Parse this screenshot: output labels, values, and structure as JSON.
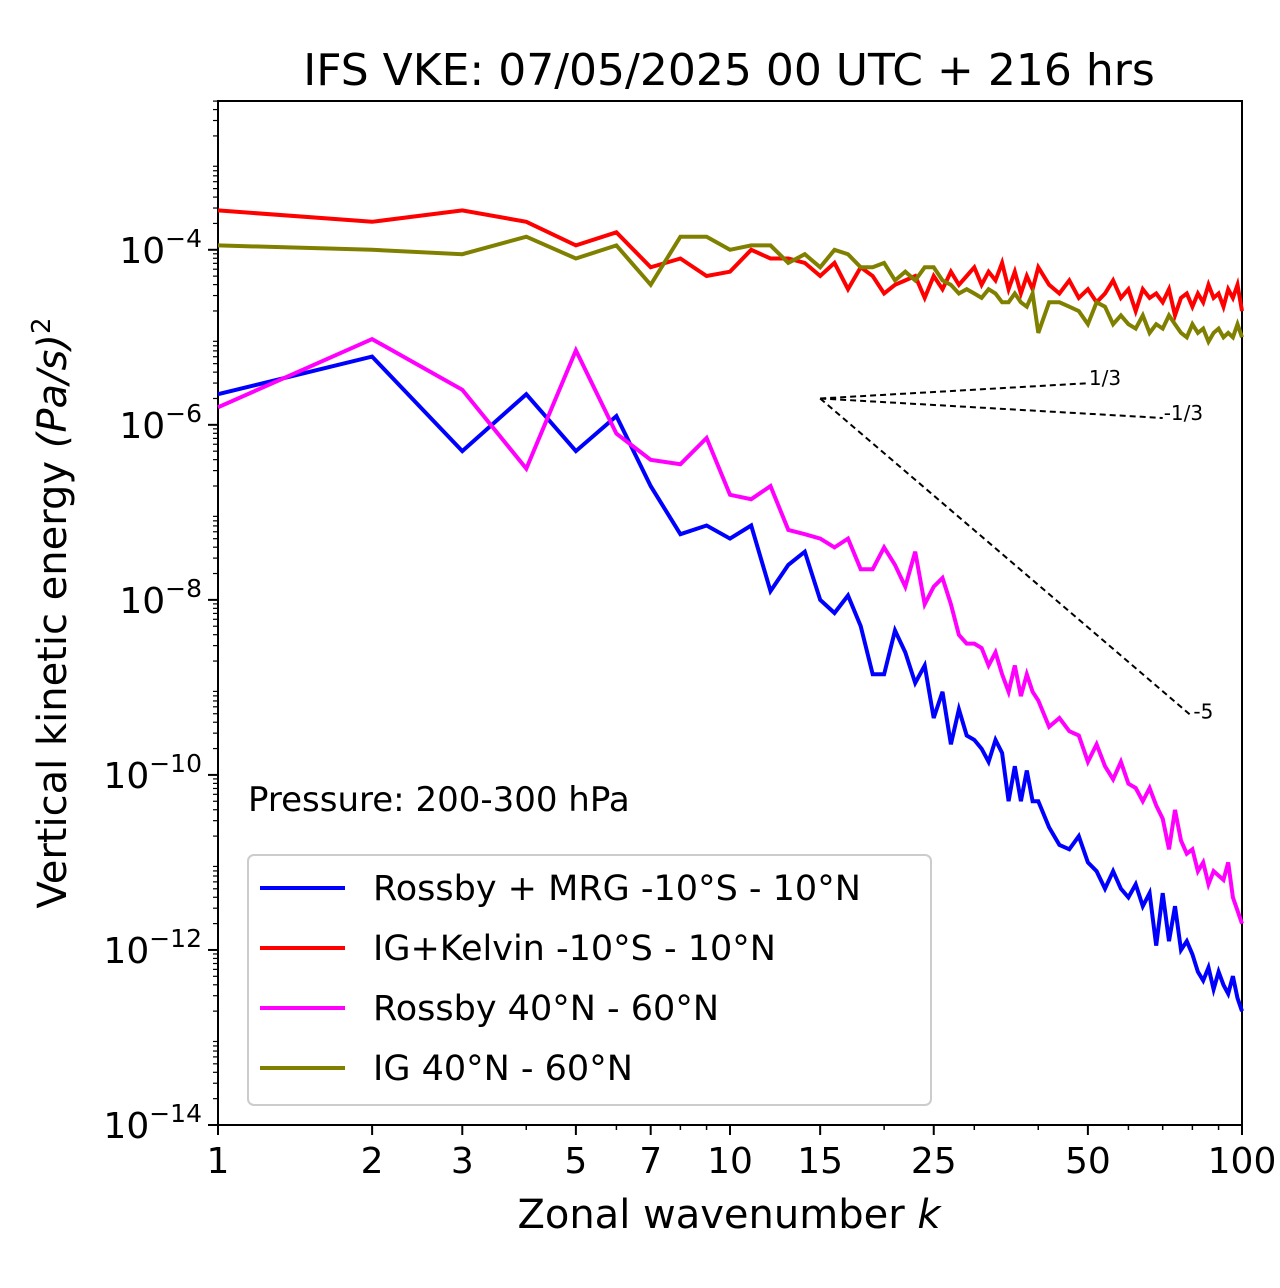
{
  "chart_data": {
    "type": "line",
    "title": "IFS VKE: 07/05/2025 00 UTC + 216 hrs",
    "xlabel": "Zonal wavenumber",
    "xlabel_italic": "k",
    "ylabel": "Vertical kinetic energy",
    "ylabel_unit": "(Pa/s)",
    "ylabel_exp": "2",
    "x_scale": "log",
    "y_scale": "log",
    "xlim": [
      1,
      100
    ],
    "ylim_exp": [
      -14,
      -2.3
    ],
    "x_ticks": [
      1,
      2,
      3,
      5,
      7,
      10,
      15,
      25,
      50,
      100
    ],
    "y_tick_exps": [
      -14,
      -12,
      -10,
      -8,
      -6,
      -4
    ],
    "y_tick_base": "10",
    "annotation": "Pressure: 200-300 hPa",
    "legend_position": "lower-left",
    "reference_lines": [
      {
        "label": "1/3",
        "slope": 0.3333
      },
      {
        "label": "-1/3",
        "slope": -0.3333
      },
      {
        "label": "-5",
        "slope": -5
      }
    ],
    "reference_origin": {
      "x": 15,
      "y": 2e-06
    },
    "reference_end_x": [
      50,
      70,
      80
    ],
    "series": [
      {
        "name": "Rossby + MRG -10°S - 10°N",
        "color": "#0000ff",
        "x": [
          1,
          2,
          3,
          4,
          5,
          6,
          7,
          8,
          9,
          10,
          11,
          12,
          13,
          14,
          15,
          16,
          17,
          18,
          19,
          20,
          21,
          22,
          23,
          24,
          25,
          26,
          27,
          28,
          29,
          30,
          31,
          32,
          33,
          34,
          35,
          36,
          37,
          38,
          39,
          40,
          42,
          44,
          46,
          48,
          50,
          52,
          54,
          56,
          58,
          60,
          62,
          64,
          66,
          68,
          70,
          72,
          74,
          76,
          78,
          80,
          82,
          84,
          86,
          88,
          90,
          92,
          94,
          96,
          98,
          100
        ],
        "y_exp": [
          -5.65,
          -5.22,
          -6.3,
          -5.65,
          -6.3,
          -5.9,
          -6.7,
          -7.25,
          -7.15,
          -7.3,
          -7.15,
          -7.9,
          -7.6,
          -7.45,
          -8.0,
          -8.15,
          -7.95,
          -8.3,
          -8.85,
          -8.85,
          -8.35,
          -8.6,
          -8.95,
          -8.75,
          -9.35,
          -9.05,
          -9.65,
          -9.25,
          -9.55,
          -9.6,
          -9.7,
          -9.85,
          -9.6,
          -9.75,
          -10.3,
          -9.9,
          -10.3,
          -9.95,
          -10.3,
          -10.3,
          -10.6,
          -10.8,
          -10.85,
          -10.7,
          -11.0,
          -11.1,
          -11.3,
          -11.1,
          -11.3,
          -11.4,
          -11.25,
          -11.5,
          -11.35,
          -11.95,
          -11.35,
          -11.9,
          -11.5,
          -12.0,
          -11.9,
          -12.05,
          -12.25,
          -12.35,
          -12.2,
          -12.45,
          -12.25,
          -12.4,
          -12.5,
          -12.3,
          -12.55,
          -12.7
        ]
      },
      {
        "name": "IG+Kelvin -10°S - 10°N",
        "color": "#ff0000",
        "x": [
          1,
          2,
          3,
          4,
          5,
          6,
          7,
          8,
          9,
          10,
          11,
          12,
          13,
          14,
          15,
          16,
          17,
          18,
          19,
          20,
          21,
          22,
          23,
          24,
          25,
          26,
          27,
          28,
          29,
          30,
          31,
          32,
          33,
          34,
          35,
          36,
          37,
          38,
          39,
          40,
          42,
          44,
          46,
          48,
          50,
          52,
          54,
          56,
          58,
          60,
          62,
          64,
          66,
          68,
          70,
          72,
          74,
          76,
          78,
          80,
          82,
          84,
          86,
          88,
          90,
          92,
          94,
          96,
          98,
          100
        ],
        "y_exp": [
          -3.55,
          -3.68,
          -3.55,
          -3.68,
          -3.95,
          -3.8,
          -4.2,
          -4.1,
          -4.3,
          -4.25,
          -4.0,
          -4.1,
          -4.1,
          -4.15,
          -4.3,
          -4.15,
          -4.45,
          -4.2,
          -4.3,
          -4.5,
          -4.4,
          -4.35,
          -4.3,
          -4.55,
          -4.3,
          -4.45,
          -4.25,
          -4.4,
          -4.3,
          -4.2,
          -4.4,
          -4.25,
          -4.35,
          -4.15,
          -4.45,
          -4.25,
          -4.5,
          -4.3,
          -4.45,
          -4.2,
          -4.4,
          -4.5,
          -4.35,
          -4.55,
          -4.45,
          -4.6,
          -4.5,
          -4.35,
          -4.55,
          -4.45,
          -4.7,
          -4.45,
          -4.55,
          -4.5,
          -4.6,
          -4.45,
          -4.75,
          -4.55,
          -4.5,
          -4.65,
          -4.5,
          -4.6,
          -4.4,
          -4.55,
          -4.5,
          -4.65,
          -4.45,
          -4.55,
          -4.4,
          -4.7
        ]
      },
      {
        "name": "Rossby 40°N - 60°N",
        "color": "#ff00ff",
        "x": [
          1,
          2,
          3,
          4,
          5,
          6,
          7,
          8,
          9,
          10,
          11,
          12,
          13,
          14,
          15,
          16,
          17,
          18,
          19,
          20,
          21,
          22,
          23,
          24,
          25,
          26,
          27,
          28,
          29,
          30,
          31,
          32,
          33,
          34,
          35,
          36,
          37,
          38,
          39,
          40,
          42,
          44,
          46,
          48,
          50,
          52,
          54,
          56,
          58,
          60,
          62,
          64,
          66,
          68,
          70,
          72,
          74,
          76,
          78,
          80,
          82,
          84,
          86,
          88,
          90,
          92,
          94,
          96,
          98,
          100
        ],
        "y_exp": [
          -5.8,
          -5.02,
          -5.6,
          -6.5,
          -5.15,
          -6.1,
          -6.4,
          -6.45,
          -6.15,
          -6.8,
          -6.85,
          -6.7,
          -7.2,
          -7.25,
          -7.3,
          -7.4,
          -7.3,
          -7.65,
          -7.65,
          -7.4,
          -7.6,
          -7.85,
          -7.45,
          -8.05,
          -7.85,
          -7.75,
          -8.05,
          -8.4,
          -8.5,
          -8.5,
          -8.55,
          -8.75,
          -8.6,
          -8.85,
          -9.05,
          -8.75,
          -9.1,
          -8.85,
          -9.05,
          -9.15,
          -9.45,
          -9.35,
          -9.5,
          -9.55,
          -9.85,
          -9.65,
          -9.9,
          -10.05,
          -9.85,
          -10.1,
          -10.15,
          -10.3,
          -10.15,
          -10.35,
          -10.5,
          -10.85,
          -10.4,
          -10.75,
          -10.9,
          -10.85,
          -11.1,
          -11.0,
          -11.25,
          -11.1,
          -11.15,
          -11.2,
          -11.0,
          -11.4,
          -11.55,
          -11.7
        ]
      },
      {
        "name": "IG 40°N - 60°N",
        "color": "#808000",
        "x": [
          1,
          2,
          3,
          4,
          5,
          6,
          7,
          8,
          9,
          10,
          11,
          12,
          13,
          14,
          15,
          16,
          17,
          18,
          19,
          20,
          21,
          22,
          23,
          24,
          25,
          26,
          27,
          28,
          29,
          30,
          31,
          32,
          33,
          34,
          35,
          36,
          37,
          38,
          39,
          40,
          42,
          44,
          46,
          48,
          50,
          52,
          54,
          56,
          58,
          60,
          62,
          64,
          66,
          68,
          70,
          72,
          74,
          76,
          78,
          80,
          82,
          84,
          86,
          88,
          90,
          92,
          94,
          96,
          98,
          100
        ],
        "y_exp": [
          -3.95,
          -4.0,
          -4.05,
          -3.85,
          -4.1,
          -3.95,
          -4.4,
          -3.85,
          -3.85,
          -4.0,
          -3.95,
          -3.95,
          -4.15,
          -4.05,
          -4.2,
          -4.0,
          -4.05,
          -4.2,
          -4.2,
          -4.15,
          -4.35,
          -4.25,
          -4.35,
          -4.2,
          -4.2,
          -4.35,
          -4.4,
          -4.5,
          -4.45,
          -4.5,
          -4.55,
          -4.45,
          -4.5,
          -4.6,
          -4.6,
          -4.5,
          -4.6,
          -4.65,
          -4.5,
          -4.95,
          -4.6,
          -4.6,
          -4.65,
          -4.7,
          -4.85,
          -4.6,
          -4.65,
          -4.85,
          -4.75,
          -4.85,
          -4.9,
          -4.75,
          -4.95,
          -4.85,
          -4.9,
          -4.75,
          -4.85,
          -4.95,
          -5.0,
          -4.85,
          -4.95,
          -4.9,
          -5.05,
          -4.95,
          -4.9,
          -5.0,
          -4.95,
          -5.0,
          -4.85,
          -5.0
        ]
      }
    ]
  }
}
